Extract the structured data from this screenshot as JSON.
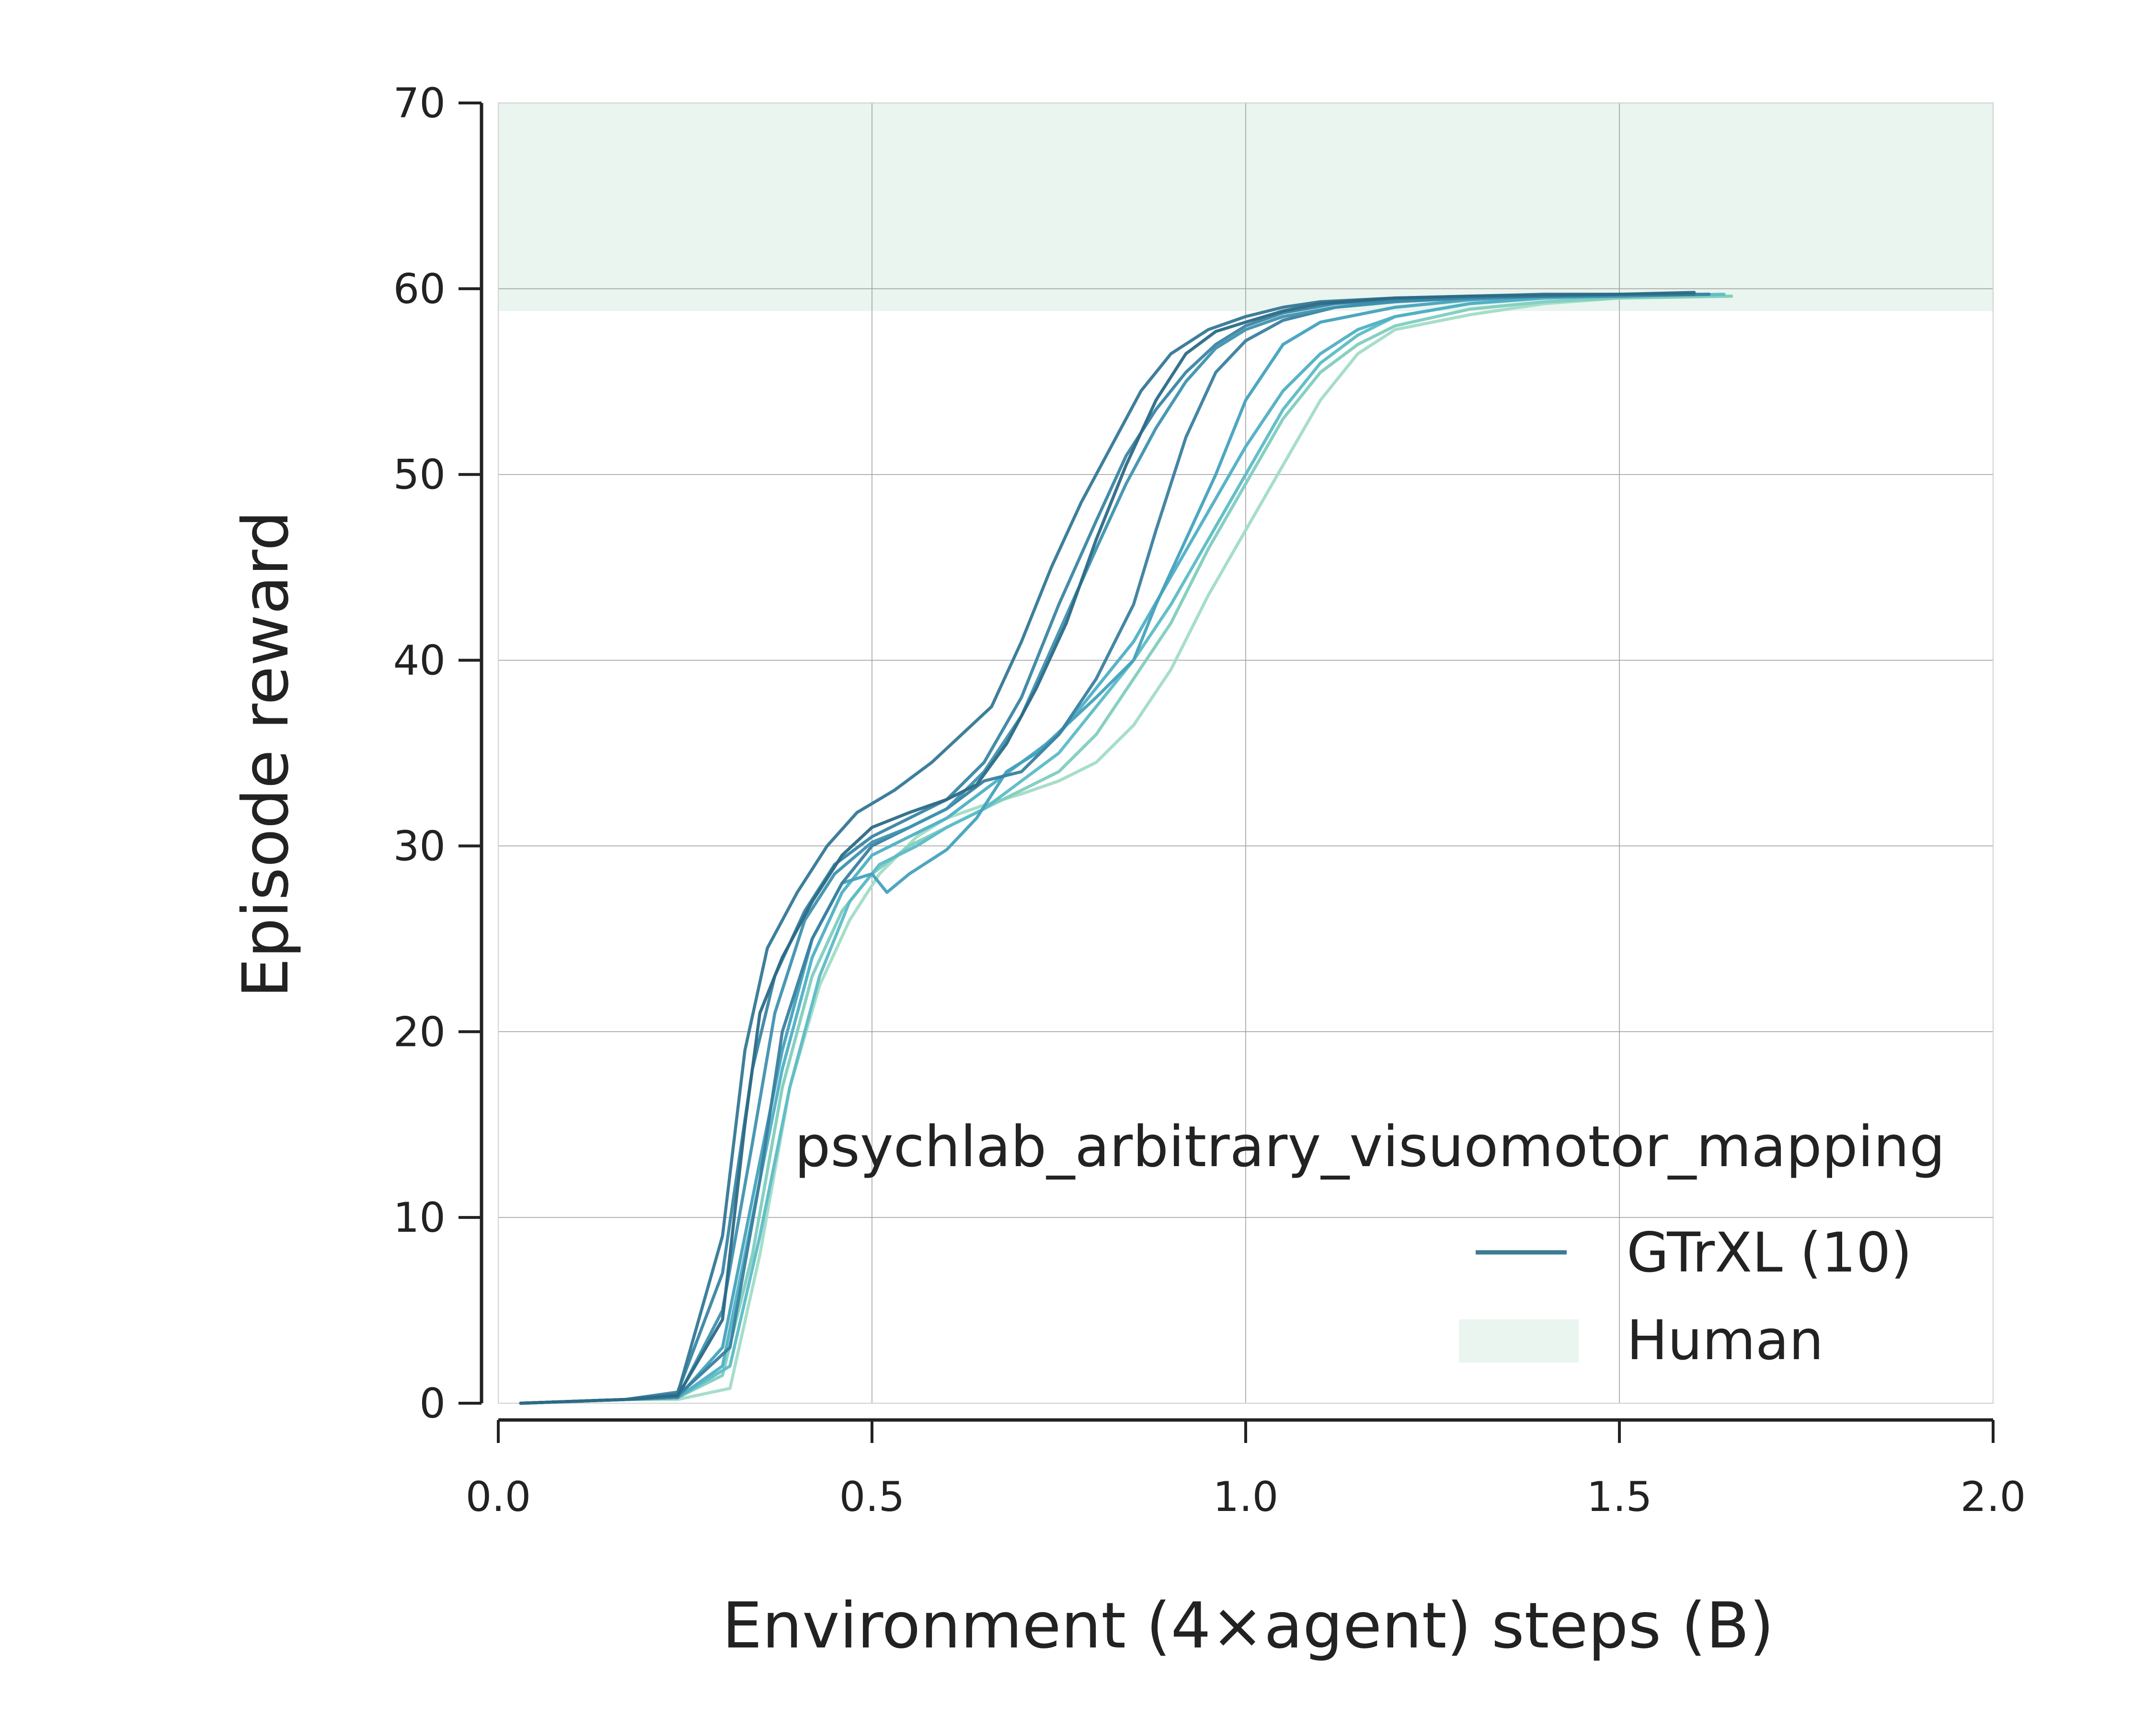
{
  "chart_data": {
    "type": "line",
    "title": "",
    "annotation": "psychlab_arbitrary_visuomotor_mapping",
    "xlabel": "Environment (4×agent) steps (B)",
    "ylabel": "Episode reward",
    "xlim": [
      0.0,
      2.0
    ],
    "ylim": [
      0,
      70
    ],
    "xticks": [
      "0.0",
      "0.5",
      "1.0",
      "1.5",
      "2.0"
    ],
    "yticks": [
      "0",
      "10",
      "20",
      "30",
      "40",
      "50",
      "60",
      "70"
    ],
    "grid": true,
    "legend_position": "lower-right",
    "legend": [
      {
        "label": "GTrXL (10)",
        "kind": "line",
        "color": "#3e7b93"
      },
      {
        "label": "Human",
        "kind": "band",
        "color": "#e9f5ee"
      }
    ],
    "human_band": {
      "low": 58.8,
      "high": 70,
      "color": "#e9f5ee"
    },
    "series": [
      {
        "color": "#2c6a86",
        "points": [
          [
            0.03,
            0
          ],
          [
            0.1,
            0.1
          ],
          [
            0.17,
            0.2
          ],
          [
            0.24,
            0.4
          ],
          [
            0.3,
            4.5
          ],
          [
            0.33,
            15
          ],
          [
            0.35,
            21
          ],
          [
            0.38,
            24
          ],
          [
            0.42,
            27
          ],
          [
            0.46,
            29.5
          ],
          [
            0.5,
            31
          ],
          [
            0.55,
            31.8
          ],
          [
            0.6,
            32.5
          ],
          [
            0.64,
            33.3
          ],
          [
            0.68,
            35.5
          ],
          [
            0.72,
            38.5
          ],
          [
            0.76,
            42
          ],
          [
            0.8,
            46.5
          ],
          [
            0.84,
            50.5
          ],
          [
            0.88,
            54
          ],
          [
            0.92,
            56.5
          ],
          [
            0.96,
            57.7
          ],
          [
            1.0,
            58.2
          ],
          [
            1.05,
            58.8
          ],
          [
            1.1,
            59.2
          ],
          [
            1.2,
            59.5
          ],
          [
            1.3,
            59.6
          ],
          [
            1.4,
            59.7
          ],
          [
            1.5,
            59.7
          ],
          [
            1.6,
            59.8
          ]
        ]
      },
      {
        "color": "#347896",
        "points": [
          [
            0.03,
            0
          ],
          [
            0.1,
            0.1
          ],
          [
            0.17,
            0.2
          ],
          [
            0.24,
            0.5
          ],
          [
            0.3,
            9
          ],
          [
            0.33,
            19
          ],
          [
            0.36,
            24.5
          ],
          [
            0.4,
            27.5
          ],
          [
            0.44,
            30
          ],
          [
            0.48,
            31.8
          ],
          [
            0.53,
            33
          ],
          [
            0.58,
            34.5
          ],
          [
            0.62,
            36
          ],
          [
            0.66,
            37.5
          ],
          [
            0.7,
            41
          ],
          [
            0.74,
            45
          ],
          [
            0.78,
            48.5
          ],
          [
            0.82,
            51.5
          ],
          [
            0.86,
            54.5
          ],
          [
            0.9,
            56.5
          ],
          [
            0.95,
            57.8
          ],
          [
            1.0,
            58.5
          ],
          [
            1.05,
            59
          ],
          [
            1.1,
            59.3
          ],
          [
            1.2,
            59.5
          ],
          [
            1.3,
            59.6
          ],
          [
            1.4,
            59.6
          ],
          [
            1.5,
            59.7
          ],
          [
            1.6,
            59.7
          ]
        ]
      },
      {
        "color": "#3a86a4",
        "points": [
          [
            0.03,
            0
          ],
          [
            0.1,
            0.1
          ],
          [
            0.17,
            0.2
          ],
          [
            0.24,
            0.6
          ],
          [
            0.3,
            7
          ],
          [
            0.34,
            18
          ],
          [
            0.37,
            23
          ],
          [
            0.41,
            26.5
          ],
          [
            0.45,
            29
          ],
          [
            0.5,
            30.5
          ],
          [
            0.55,
            31.5
          ],
          [
            0.6,
            32.5
          ],
          [
            0.65,
            34.5
          ],
          [
            0.7,
            38
          ],
          [
            0.75,
            43
          ],
          [
            0.8,
            47.5
          ],
          [
            0.84,
            51
          ],
          [
            0.88,
            53.5
          ],
          [
            0.92,
            55.5
          ],
          [
            0.96,
            57
          ],
          [
            1.0,
            58
          ],
          [
            1.05,
            58.7
          ],
          [
            1.12,
            59.2
          ],
          [
            1.2,
            59.4
          ],
          [
            1.3,
            59.5
          ],
          [
            1.4,
            59.6
          ],
          [
            1.5,
            59.7
          ],
          [
            1.62,
            59.7
          ]
        ]
      },
      {
        "color": "#3f92b0",
        "points": [
          [
            0.03,
            0
          ],
          [
            0.1,
            0.1
          ],
          [
            0.17,
            0.2
          ],
          [
            0.24,
            0.3
          ],
          [
            0.3,
            5
          ],
          [
            0.34,
            14
          ],
          [
            0.37,
            21
          ],
          [
            0.41,
            26
          ],
          [
            0.45,
            28.5
          ],
          [
            0.5,
            30.2
          ],
          [
            0.55,
            31
          ],
          [
            0.6,
            32
          ],
          [
            0.65,
            34
          ],
          [
            0.7,
            37
          ],
          [
            0.75,
            41.5
          ],
          [
            0.8,
            46
          ],
          [
            0.84,
            49.5
          ],
          [
            0.88,
            52.5
          ],
          [
            0.92,
            55
          ],
          [
            0.96,
            56.8
          ],
          [
            1.0,
            57.8
          ],
          [
            1.05,
            58.5
          ],
          [
            1.12,
            59
          ],
          [
            1.2,
            59.3
          ],
          [
            1.3,
            59.5
          ],
          [
            1.4,
            59.6
          ],
          [
            1.5,
            59.6
          ],
          [
            1.62,
            59.7
          ]
        ]
      },
      {
        "color": "#3a80a0",
        "points": [
          [
            0.03,
            0
          ],
          [
            0.1,
            0.1
          ],
          [
            0.17,
            0.2
          ],
          [
            0.24,
            0.4
          ],
          [
            0.31,
            3
          ],
          [
            0.35,
            12
          ],
          [
            0.38,
            20
          ],
          [
            0.42,
            25
          ],
          [
            0.46,
            28
          ],
          [
            0.5,
            30
          ],
          [
            0.55,
            31
          ],
          [
            0.6,
            32
          ],
          [
            0.65,
            33.5
          ],
          [
            0.7,
            34
          ],
          [
            0.75,
            36
          ],
          [
            0.8,
            39
          ],
          [
            0.85,
            43
          ],
          [
            0.88,
            47
          ],
          [
            0.92,
            52
          ],
          [
            0.96,
            55.5
          ],
          [
            1.0,
            57.2
          ],
          [
            1.05,
            58.3
          ],
          [
            1.12,
            59
          ],
          [
            1.2,
            59.3
          ],
          [
            1.3,
            59.5
          ],
          [
            1.4,
            59.6
          ],
          [
            1.5,
            59.6
          ],
          [
            1.6,
            59.7
          ]
        ]
      },
      {
        "color": "#45a2bd",
        "points": [
          [
            0.03,
            0
          ],
          [
            0.1,
            0.1
          ],
          [
            0.17,
            0.2
          ],
          [
            0.24,
            0.3
          ],
          [
            0.3,
            3
          ],
          [
            0.34,
            11
          ],
          [
            0.38,
            19
          ],
          [
            0.42,
            25
          ],
          [
            0.46,
            28
          ],
          [
            0.5,
            28.5
          ],
          [
            0.52,
            27.5
          ],
          [
            0.55,
            28.5
          ],
          [
            0.6,
            29.8
          ],
          [
            0.64,
            31.5
          ],
          [
            0.68,
            34
          ],
          [
            0.72,
            35
          ],
          [
            0.76,
            36.5
          ],
          [
            0.8,
            38
          ],
          [
            0.85,
            40
          ],
          [
            0.88,
            43
          ],
          [
            0.92,
            46.5
          ],
          [
            0.96,
            50
          ],
          [
            1.0,
            54
          ],
          [
            1.05,
            57
          ],
          [
            1.1,
            58.2
          ],
          [
            1.2,
            59
          ],
          [
            1.3,
            59.4
          ],
          [
            1.4,
            59.6
          ],
          [
            1.5,
            59.6
          ],
          [
            1.62,
            59.7
          ]
        ]
      },
      {
        "color": "#4fb0c4",
        "points": [
          [
            0.03,
            0
          ],
          [
            0.1,
            0.1
          ],
          [
            0.17,
            0.2
          ],
          [
            0.24,
            0.3
          ],
          [
            0.3,
            2
          ],
          [
            0.34,
            10
          ],
          [
            0.38,
            18
          ],
          [
            0.42,
            24
          ],
          [
            0.46,
            27.5
          ],
          [
            0.5,
            29.5
          ],
          [
            0.55,
            30.5
          ],
          [
            0.6,
            31.5
          ],
          [
            0.65,
            33
          ],
          [
            0.7,
            34.5
          ],
          [
            0.75,
            36
          ],
          [
            0.8,
            38.5
          ],
          [
            0.85,
            41
          ],
          [
            0.9,
            44.5
          ],
          [
            0.95,
            48
          ],
          [
            1.0,
            51.5
          ],
          [
            1.05,
            54.5
          ],
          [
            1.1,
            56.5
          ],
          [
            1.15,
            57.8
          ],
          [
            1.2,
            58.5
          ],
          [
            1.3,
            59.2
          ],
          [
            1.4,
            59.5
          ],
          [
            1.5,
            59.6
          ],
          [
            1.62,
            59.7
          ]
        ]
      },
      {
        "color": "#5cbcc6",
        "points": [
          [
            0.03,
            0
          ],
          [
            0.1,
            0.1
          ],
          [
            0.17,
            0.2
          ],
          [
            0.24,
            0.3
          ],
          [
            0.31,
            2
          ],
          [
            0.35,
            9
          ],
          [
            0.39,
            17
          ],
          [
            0.43,
            23
          ],
          [
            0.47,
            27
          ],
          [
            0.51,
            29
          ],
          [
            0.56,
            30
          ],
          [
            0.6,
            31
          ],
          [
            0.65,
            32
          ],
          [
            0.7,
            33.5
          ],
          [
            0.75,
            35
          ],
          [
            0.8,
            37.5
          ],
          [
            0.85,
            40
          ],
          [
            0.9,
            43
          ],
          [
            0.95,
            46.5
          ],
          [
            1.0,
            50
          ],
          [
            1.05,
            53.5
          ],
          [
            1.1,
            56
          ],
          [
            1.15,
            57.5
          ],
          [
            1.2,
            58.5
          ],
          [
            1.3,
            59.2
          ],
          [
            1.4,
            59.5
          ],
          [
            1.5,
            59.6
          ],
          [
            1.64,
            59.7
          ]
        ]
      },
      {
        "color": "#7fcdbf",
        "points": [
          [
            0.03,
            0
          ],
          [
            0.1,
            0.1
          ],
          [
            0.17,
            0.2
          ],
          [
            0.24,
            0.3
          ],
          [
            0.3,
            1.5
          ],
          [
            0.34,
            8
          ],
          [
            0.38,
            17
          ],
          [
            0.42,
            23
          ],
          [
            0.46,
            26.5
          ],
          [
            0.5,
            28.5
          ],
          [
            0.55,
            30
          ],
          [
            0.6,
            31
          ],
          [
            0.65,
            32
          ],
          [
            0.7,
            33
          ],
          [
            0.75,
            34
          ],
          [
            0.8,
            36
          ],
          [
            0.85,
            39
          ],
          [
            0.9,
            42
          ],
          [
            0.95,
            46
          ],
          [
            1.0,
            49.5
          ],
          [
            1.05,
            53
          ],
          [
            1.1,
            55.5
          ],
          [
            1.15,
            57
          ],
          [
            1.2,
            58
          ],
          [
            1.3,
            58.9
          ],
          [
            1.4,
            59.3
          ],
          [
            1.5,
            59.5
          ],
          [
            1.65,
            59.6
          ]
        ]
      },
      {
        "color": "#a2dcc6",
        "points": [
          [
            0.03,
            0
          ],
          [
            0.1,
            0.1
          ],
          [
            0.17,
            0.2
          ],
          [
            0.24,
            0.2
          ],
          [
            0.31,
            0.8
          ],
          [
            0.35,
            8
          ],
          [
            0.39,
            17
          ],
          [
            0.43,
            22.5
          ],
          [
            0.47,
            26
          ],
          [
            0.51,
            28.5
          ],
          [
            0.56,
            30.5
          ],
          [
            0.6,
            31.5
          ],
          [
            0.65,
            32.2
          ],
          [
            0.7,
            32.8
          ],
          [
            0.75,
            33.5
          ],
          [
            0.8,
            34.5
          ],
          [
            0.85,
            36.5
          ],
          [
            0.9,
            39.5
          ],
          [
            0.95,
            43.5
          ],
          [
            1.0,
            47
          ],
          [
            1.05,
            50.5
          ],
          [
            1.1,
            54
          ],
          [
            1.15,
            56.5
          ],
          [
            1.2,
            57.8
          ],
          [
            1.3,
            58.6
          ],
          [
            1.4,
            59.2
          ],
          [
            1.5,
            59.5
          ],
          [
            1.65,
            59.6
          ]
        ]
      }
    ]
  }
}
